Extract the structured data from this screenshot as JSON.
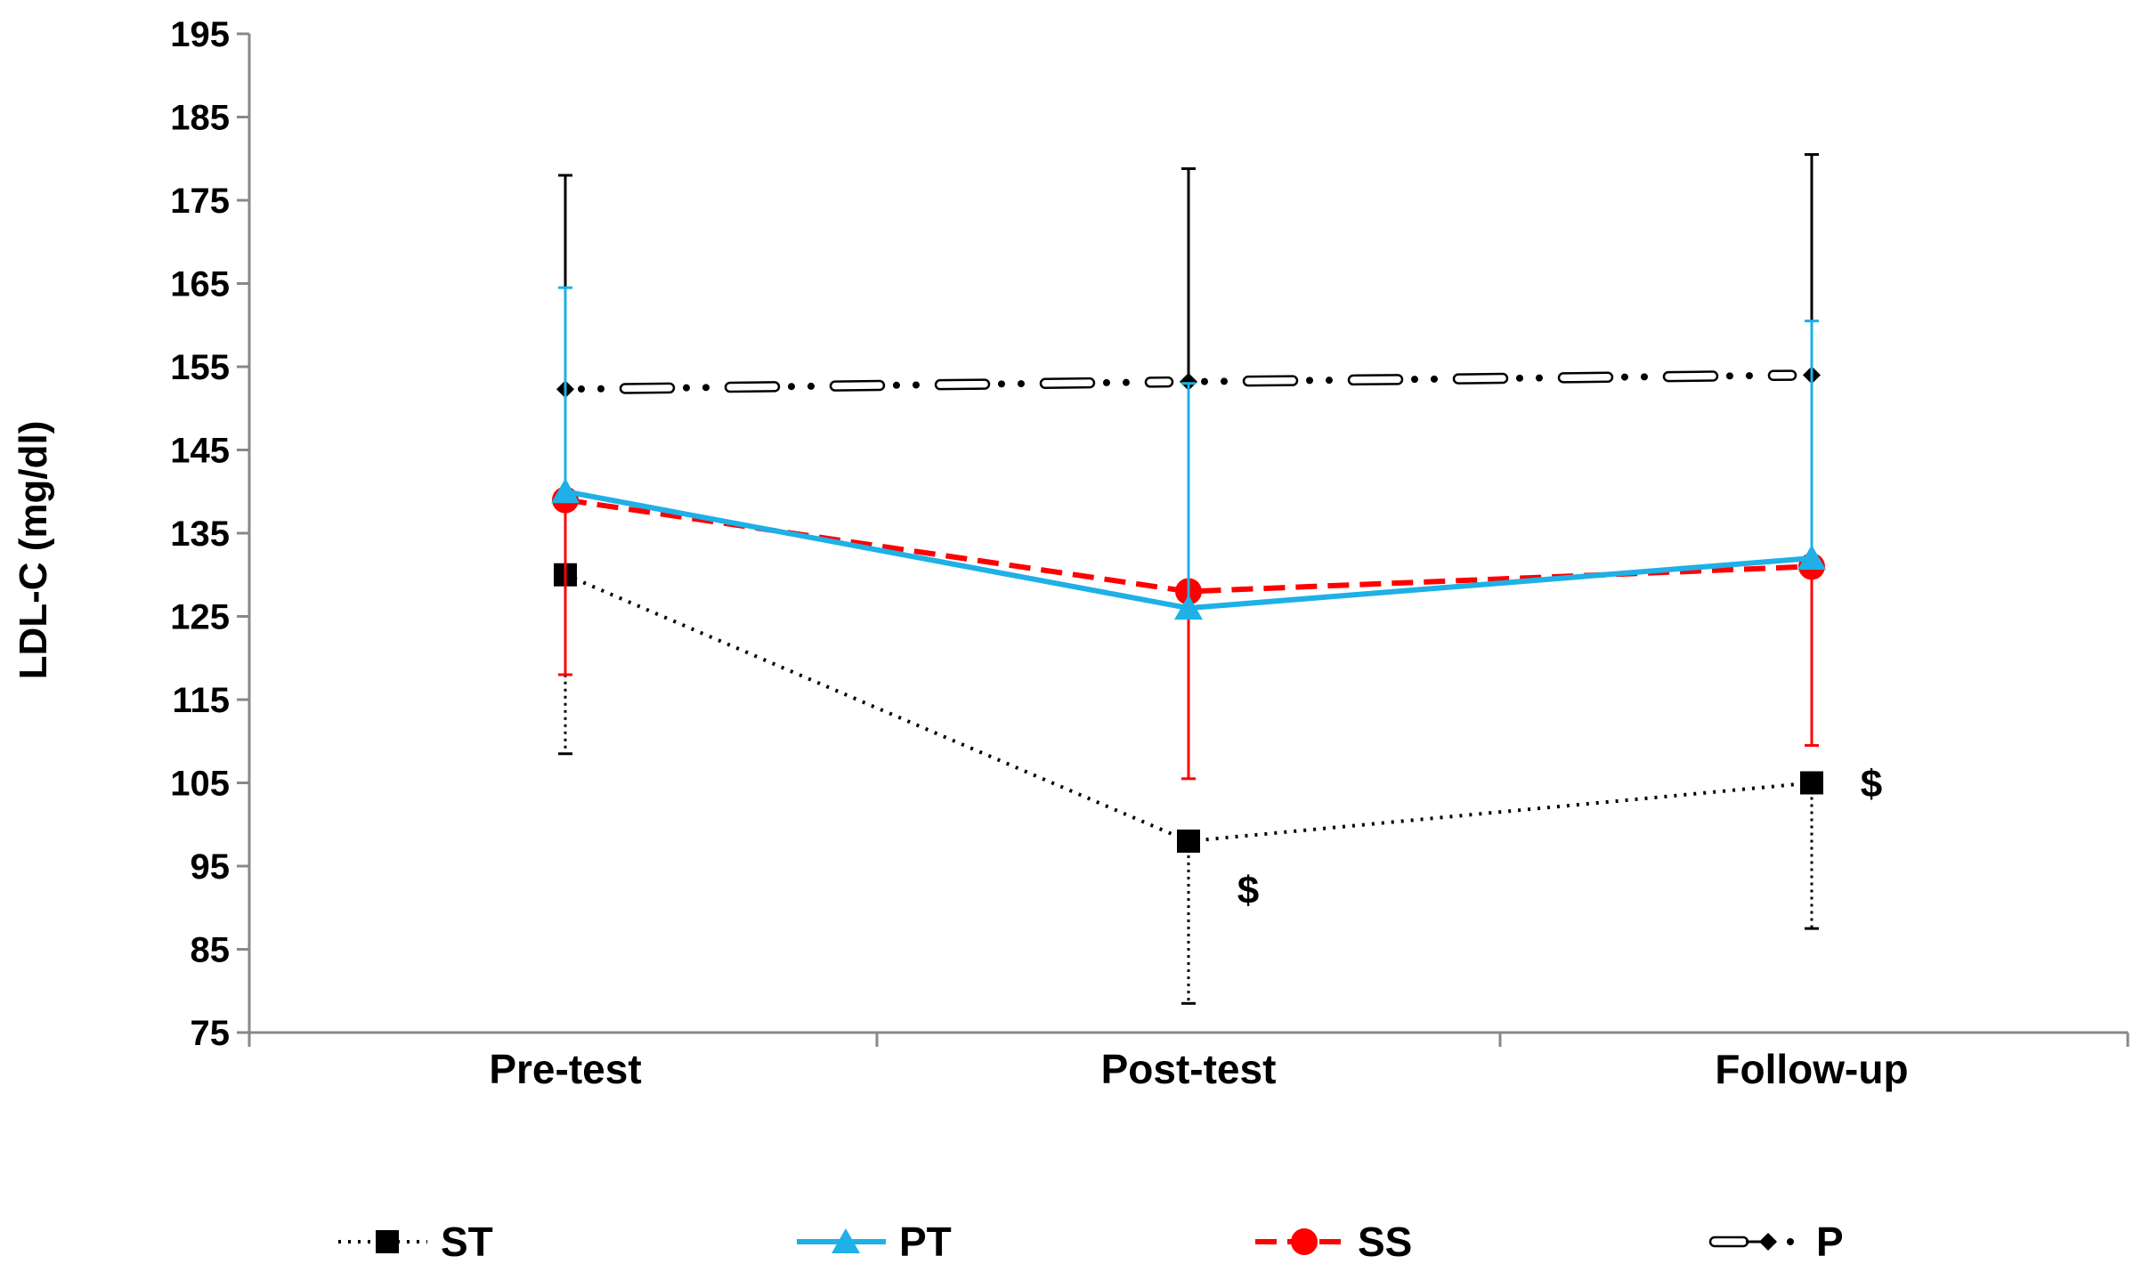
{
  "chart_data": {
    "type": "line",
    "title": "",
    "xlabel": "",
    "ylabel": "LDL-C (mg/dl)",
    "categories": [
      "Pre-test",
      "Post-test",
      "Follow-up"
    ],
    "ylim": [
      75,
      195
    ],
    "yticks": [
      75,
      85,
      95,
      105,
      115,
      125,
      135,
      145,
      155,
      165,
      175,
      185,
      195
    ],
    "grid": false,
    "legend_position": "bottom",
    "series": [
      {
        "name": "ST",
        "color": "#000000",
        "style": "dotted",
        "marker": "square",
        "values": [
          130,
          98,
          105
        ],
        "error_upper": [
          130,
          98,
          105
        ],
        "error_lower": [
          108.5,
          78.5,
          87.5
        ]
      },
      {
        "name": "PT",
        "color": "#1EB0E6",
        "style": "solid",
        "marker": "triangle",
        "values": [
          140,
          126,
          132
        ],
        "error_upper": [
          164.5,
          153,
          160.5
        ],
        "error_lower": [
          140,
          126,
          132
        ]
      },
      {
        "name": "SS",
        "color": "#FF0000",
        "style": "dashed",
        "marker": "circle",
        "values": [
          139,
          128,
          131
        ],
        "error_upper": [
          139,
          128,
          131
        ],
        "error_lower": [
          118,
          105.5,
          109.5
        ]
      },
      {
        "name": "P",
        "color": "#000000",
        "style": "dash-dot-hollow",
        "marker": "diamond",
        "values": [
          152.3,
          153.2,
          154
        ],
        "error_upper": [
          178,
          178.8,
          180.5
        ],
        "error_lower": [
          152.3,
          153.2,
          154
        ]
      }
    ],
    "annotations": [
      {
        "text": "$",
        "category": "Post-test",
        "series": "ST"
      },
      {
        "text": "$",
        "category": "Follow-up",
        "series": "ST"
      }
    ]
  }
}
